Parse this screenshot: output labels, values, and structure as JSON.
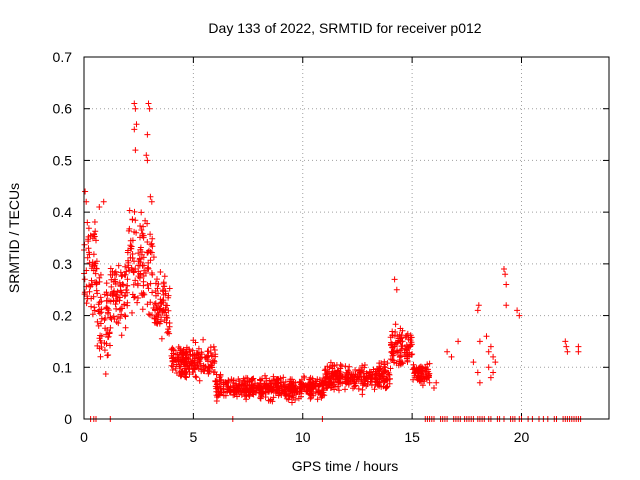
{
  "chart_data": {
    "type": "scatter",
    "title": "Day 133 of 2022, SRMTID for receiver p012",
    "xlabel": "GPS time / hours",
    "ylabel": "SRMTID / TECUs",
    "xlim": [
      0,
      24
    ],
    "ylim": [
      0,
      0.7
    ],
    "xticks": [
      0,
      5,
      10,
      15,
      20
    ],
    "yticks": [
      0,
      0.1,
      0.2,
      0.3,
      0.4,
      0.5,
      0.6,
      0.7
    ],
    "ytick_labels": [
      "0",
      "0.1",
      "0.2",
      "0.3",
      "0.4",
      "0.5",
      "0.6",
      "0.7"
    ],
    "grid": true,
    "marker": "+",
    "color": "#ff0000",
    "segments": [
      {
        "x0": 0.0,
        "x1": 0.6,
        "base": 0.28,
        "spread": 0.14
      },
      {
        "x0": 0.6,
        "x1": 1.2,
        "base": 0.19,
        "spread": 0.12
      },
      {
        "x0": 1.2,
        "x1": 2.0,
        "base": 0.24,
        "spread": 0.1
      },
      {
        "x0": 2.0,
        "x1": 3.2,
        "base": 0.3,
        "spread": 0.16
      },
      {
        "x0": 3.2,
        "x1": 4.0,
        "base": 0.22,
        "spread": 0.08
      },
      {
        "x0": 4.0,
        "x1": 6.0,
        "base": 0.11,
        "spread": 0.05
      },
      {
        "x0": 6.0,
        "x1": 11.0,
        "base": 0.06,
        "spread": 0.03
      },
      {
        "x0": 11.0,
        "x1": 14.0,
        "base": 0.08,
        "spread": 0.035
      },
      {
        "x0": 14.0,
        "x1": 15.0,
        "base": 0.14,
        "spread": 0.06
      },
      {
        "x0": 15.0,
        "x1": 15.8,
        "base": 0.09,
        "spread": 0.03
      }
    ],
    "peaks": [
      {
        "x": 2.3,
        "y": 0.61
      },
      {
        "x": 2.35,
        "y": 0.6
      },
      {
        "x": 2.4,
        "y": 0.57
      },
      {
        "x": 2.3,
        "y": 0.56
      },
      {
        "x": 2.95,
        "y": 0.61
      },
      {
        "x": 3.0,
        "y": 0.6
      },
      {
        "x": 2.9,
        "y": 0.55
      },
      {
        "x": 2.85,
        "y": 0.51
      },
      {
        "x": 2.9,
        "y": 0.5
      },
      {
        "x": 2.35,
        "y": 0.52
      },
      {
        "x": 3.1,
        "y": 0.42
      },
      {
        "x": 0.05,
        "y": 0.44
      },
      {
        "x": 0.1,
        "y": 0.42
      },
      {
        "x": 0.15,
        "y": 0.38
      },
      {
        "x": 0.9,
        "y": 0.42
      },
      {
        "x": 0.7,
        "y": 0.41
      },
      {
        "x": 14.2,
        "y": 0.27
      },
      {
        "x": 14.3,
        "y": 0.25
      }
    ],
    "sparse": [
      {
        "x": 15.8,
        "y": 0.07
      },
      {
        "x": 16.0,
        "y": 0.06
      },
      {
        "x": 16.1,
        "y": 0.07
      },
      {
        "x": 16.6,
        "y": 0.13
      },
      {
        "x": 16.8,
        "y": 0.12
      },
      {
        "x": 17.1,
        "y": 0.15
      },
      {
        "x": 17.8,
        "y": 0.11
      },
      {
        "x": 18.0,
        "y": 0.21
      },
      {
        "x": 18.05,
        "y": 0.22
      },
      {
        "x": 18.1,
        "y": 0.15
      },
      {
        "x": 18.0,
        "y": 0.09
      },
      {
        "x": 18.1,
        "y": 0.07
      },
      {
        "x": 18.4,
        "y": 0.16
      },
      {
        "x": 18.5,
        "y": 0.13
      },
      {
        "x": 18.5,
        "y": 0.1
      },
      {
        "x": 18.6,
        "y": 0.08
      },
      {
        "x": 18.7,
        "y": 0.12
      },
      {
        "x": 18.8,
        "y": 0.11
      },
      {
        "x": 18.6,
        "y": 0.14
      },
      {
        "x": 18.7,
        "y": 0.09
      },
      {
        "x": 19.2,
        "y": 0.29
      },
      {
        "x": 19.25,
        "y": 0.28
      },
      {
        "x": 19.3,
        "y": 0.26
      },
      {
        "x": 19.3,
        "y": 0.22
      },
      {
        "x": 19.8,
        "y": 0.21
      },
      {
        "x": 19.9,
        "y": 0.2
      },
      {
        "x": 22.0,
        "y": 0.15
      },
      {
        "x": 22.05,
        "y": 0.14
      },
      {
        "x": 22.1,
        "y": 0.13
      },
      {
        "x": 22.6,
        "y": 0.14
      },
      {
        "x": 22.6,
        "y": 0.13
      }
    ],
    "zeros": [
      0.3,
      0.45,
      0.55,
      1.2,
      6.8,
      10.9,
      15.6,
      15.7,
      15.8,
      15.9,
      16.0,
      16.3,
      16.4,
      16.5,
      16.6,
      16.9,
      17.0,
      17.1,
      17.2,
      17.4,
      17.5,
      17.6,
      17.7,
      17.8,
      18.0,
      18.1,
      18.2,
      18.3,
      18.5,
      18.6,
      18.9,
      19.0,
      19.2,
      19.5,
      19.6,
      19.7,
      19.9,
      20.0,
      20.3,
      20.5,
      20.8,
      21.0,
      21.2,
      21.5,
      21.6,
      21.9,
      22.0,
      22.1,
      22.2,
      22.3,
      22.4,
      22.5,
      22.6,
      22.7
    ]
  }
}
